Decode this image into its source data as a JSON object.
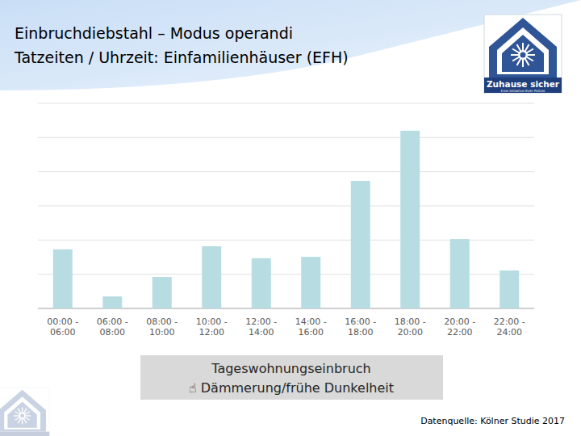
{
  "chart_data": {
    "type": "bar",
    "title": "Einbruchdiebstahl – Modus operandi",
    "subtitle": "Tatzeiten / Uhrzeit: Einfamilienhäuser (EFH)",
    "categories": [
      "00:00 - 06:00",
      "06:00 - 08:00",
      "08:00 - 10:00",
      "10:00 - 12:00",
      "12:00 - 14:00",
      "14:00 - 16:00",
      "16:00 - 18:00",
      "18:00 - 20:00",
      "20:00 - 22:00",
      "22:00 - 24:00"
    ],
    "values": [
      1.73,
      0.35,
      0.92,
      1.82,
      1.47,
      1.51,
      3.73,
      5.2,
      2.03,
      1.11
    ],
    "color": "#b7dde2",
    "ylim": [
      0,
      6
    ],
    "yticks": [
      0,
      1,
      2,
      3,
      4,
      5,
      6
    ],
    "grid": true,
    "tick_labels": "x",
    "annotations": [
      "Tageswohnungseinbruch",
      "☝ Dämmerung/frühe Dunkelheit"
    ],
    "source": "Datenquelle: Kölner Studie 2017",
    "logo": {
      "title": "Zuhause sicher",
      "tagline": "Eine Initiative Ihrer Polizei"
    }
  }
}
